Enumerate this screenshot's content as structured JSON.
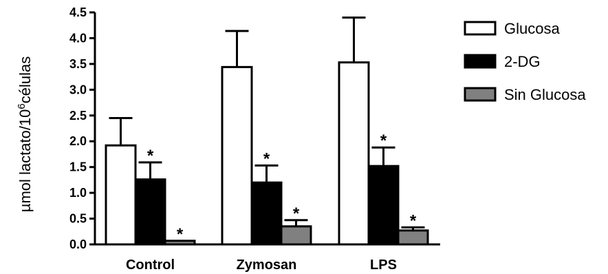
{
  "chart_data": {
    "type": "bar",
    "ylabel_parts": [
      "µmol lactato/10",
      "6",
      "células"
    ],
    "ylim": [
      0,
      4.5
    ],
    "yticks": [
      "0.0",
      "0.5",
      "1.0",
      "1.5",
      "2.0",
      "2.5",
      "3.0",
      "3.5",
      "4.0",
      "4.5"
    ],
    "categories": [
      "Control",
      "Zymosan",
      "LPS"
    ],
    "series": [
      {
        "name": "Glucosa",
        "color": "#ffffff",
        "values": [
          1.92,
          3.44,
          3.53
        ],
        "errors": [
          0.53,
          0.7,
          0.87
        ],
        "marks": [
          "",
          "",
          ""
        ]
      },
      {
        "name": "2-DG",
        "color": "#000000",
        "values": [
          1.26,
          1.2,
          1.52
        ],
        "errors": [
          0.33,
          0.33,
          0.36
        ],
        "marks": [
          "*",
          "*",
          "*"
        ]
      },
      {
        "name": "Sin Glucosa",
        "color": "#808080",
        "values": [
          0.07,
          0.35,
          0.27
        ],
        "errors": [
          0.0,
          0.12,
          0.06
        ],
        "marks": [
          "*",
          "*",
          "*"
        ]
      }
    ],
    "legend_position": "right"
  }
}
